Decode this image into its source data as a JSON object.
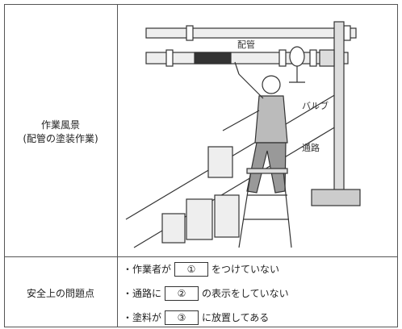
{
  "table": {
    "rows": [
      {
        "header": "作業風景",
        "subheader": "(配管の塗装作業)",
        "illustration": {
          "labels": [
            "配管",
            "バルブ",
            "通路"
          ]
        }
      },
      {
        "header": "安全上の問題点",
        "items": [
          {
            "before": "・作業者が",
            "blank": "①",
            "after": "をつけていない"
          },
          {
            "before": "・通路に",
            "blank": "②",
            "after": "の表示をしていない"
          },
          {
            "before": "・塗料が",
            "blank": "③",
            "after": "に放置してある"
          }
        ]
      }
    ]
  }
}
